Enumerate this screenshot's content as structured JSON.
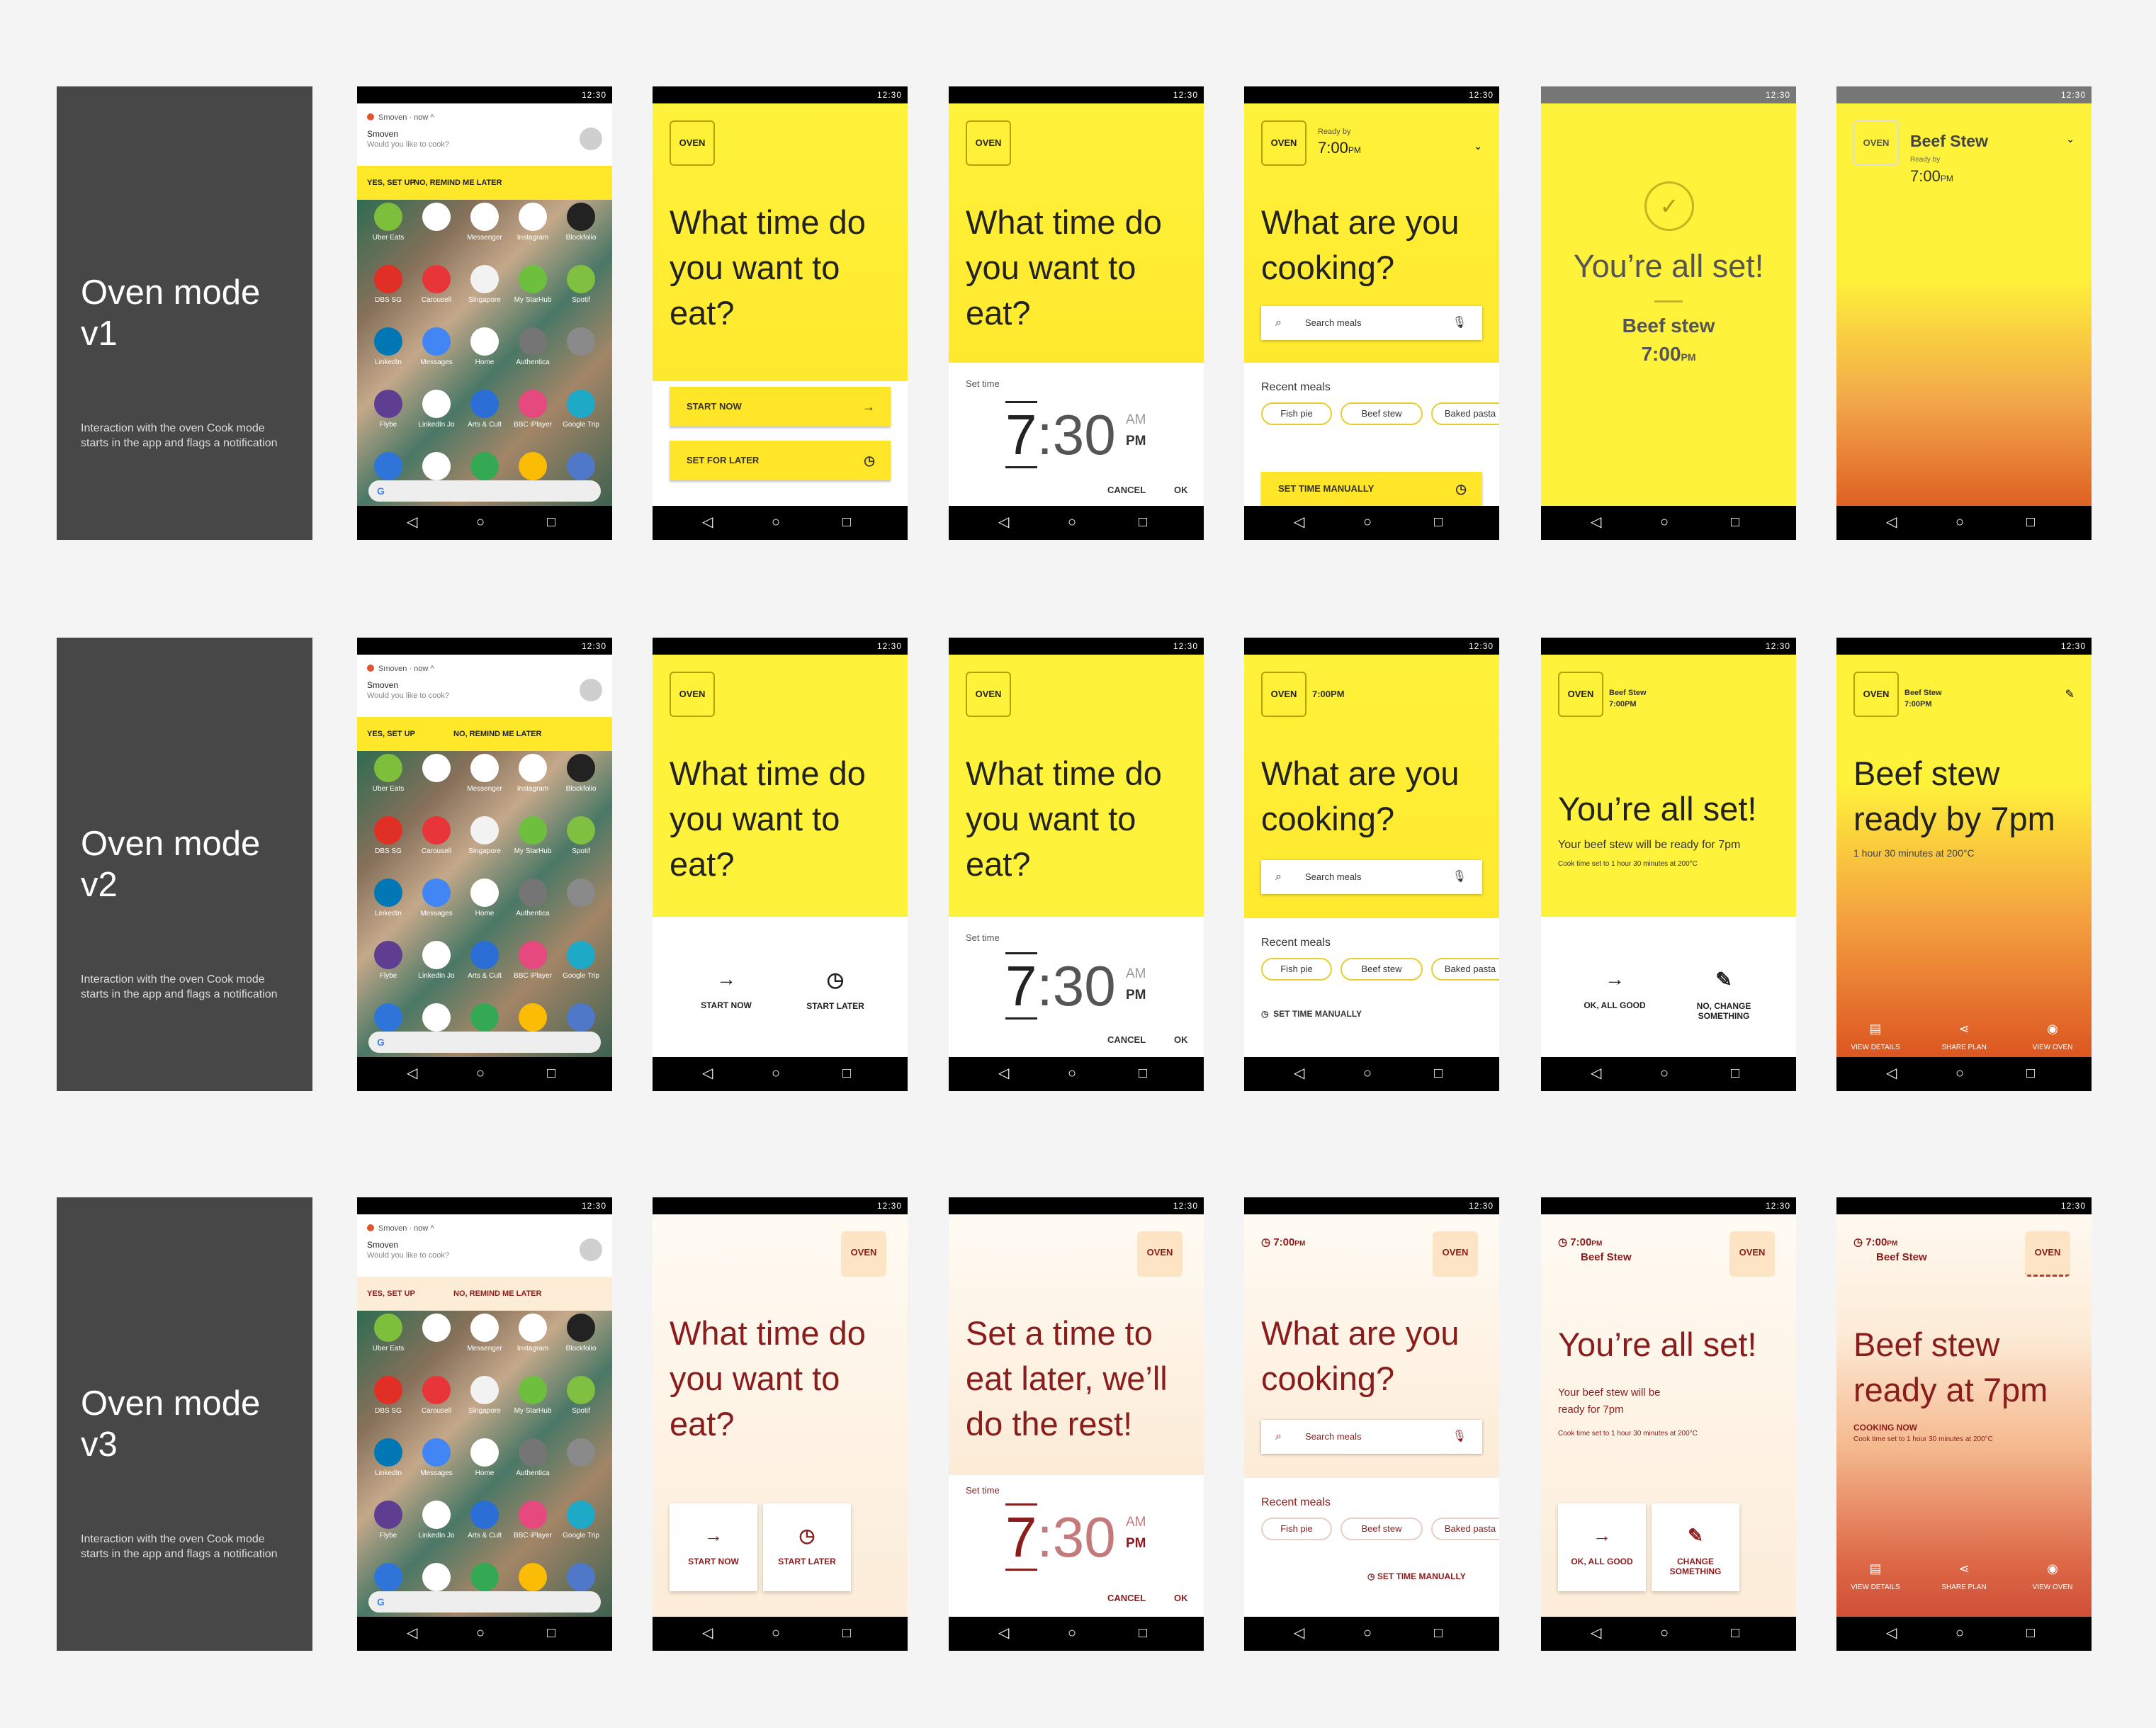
{
  "labels": [
    {
      "title": "Oven mode v1",
      "desc": "Interaction with the oven Cook mode starts in the app and flags a notification"
    },
    {
      "title": "Oven mode v2",
      "desc": "Interaction with the oven Cook mode starts in the app and flags a notification"
    },
    {
      "title": "Oven mode v3",
      "desc": "Interaction with the oven Cook mode starts in the app and flags a notification"
    }
  ],
  "status_time": "12:30",
  "nav": {
    "back": "◁",
    "home": "○",
    "recent": "□"
  },
  "notification": {
    "app": "Smoven",
    "meta": "· now ^",
    "title": "Smoven",
    "body": "Would you like to cook?",
    "yes": "YES, SET UP",
    "no": "NO, REMIND ME LATER"
  },
  "home_apps": [
    {
      "label": "Uber Eats",
      "color": "#7dbf3a"
    },
    {
      "label": "",
      "color": "#ffffff"
    },
    {
      "label": "Messenger",
      "color": "#ffffff"
    },
    {
      "label": "Instagram",
      "color": "#ffffff"
    },
    {
      "label": "Blockfolio",
      "color": "#222222"
    },
    {
      "label": "DBS SG",
      "color": "#e03025"
    },
    {
      "label": "Carousell",
      "color": "#e8353a"
    },
    {
      "label": "Singapore",
      "color": "#f2f2f2"
    },
    {
      "label": "My StarHub",
      "color": "#6fbf3f"
    },
    {
      "label": "Spotif",
      "color": "#80c040"
    },
    {
      "label": "LinkedIn",
      "color": "#0077b5"
    },
    {
      "label": "Messages",
      "color": "#4285f4"
    },
    {
      "label": "Home",
      "color": "#ffffff"
    },
    {
      "label": "Authentica",
      "color": "#757575"
    },
    {
      "label": "",
      "color": "#8a8a8a"
    },
    {
      "label": "Flybe",
      "color": "#5f3e91"
    },
    {
      "label": "LinkedIn Jo",
      "color": "#ffffff"
    },
    {
      "label": "Arts & Cult",
      "color": "#2b6fd6"
    },
    {
      "label": "BBC iPlayer",
      "color": "#e5497e"
    },
    {
      "label": "Google Trip",
      "color": "#1ea9c7"
    },
    {
      "label": "",
      "color": "#2f74d8"
    },
    {
      "label": "",
      "color": "#ffffff"
    },
    {
      "label": "",
      "color": "#34a853"
    },
    {
      "label": "",
      "color": "#fbbc05"
    },
    {
      "label": "",
      "color": "#4f79c8"
    }
  ],
  "v1": {
    "chip": "OVEN",
    "q_time": [
      "What time do",
      "you want to",
      "eat?"
    ],
    "start_now": "START NOW",
    "set_later": "SET FOR LATER",
    "picker": {
      "label": "Set time",
      "hour": "7",
      "rest": ":30",
      "am": "AM",
      "pm": "PM",
      "cancel": "CANCEL",
      "ok": "OK"
    },
    "ready_by": "Ready by",
    "ready_time": "7:00",
    "pm_suffix": "PM",
    "q_cook": [
      "What are you",
      "cooking?"
    ],
    "search_placeholder": "Search meals",
    "recent": "Recent meals",
    "meals": [
      "Fish pie",
      "Beef stew",
      "Baked pasta"
    ],
    "set_manual": "SET TIME MANUALLY",
    "all_set": "You’re all set!",
    "dish": "Beef stew",
    "dish_time": "7:00",
    "final_dish": "Beef Stew"
  },
  "v2": {
    "chip": "OVEN",
    "time_short": "7:00PM",
    "dish": "Beef Stew",
    "start_now": "START NOW",
    "start_later": "START LATER",
    "ok_good": "OK, ALL GOOD",
    "change": "NO, CHANGE",
    "something": "SOMETHING",
    "all_set": "You’re all set!",
    "ready_sub": "Your beef stew will be ready for 7pm",
    "cook_info": "Cook time set to 1 hour 30 minutes at 200°C",
    "final_title": [
      "Beef stew",
      "ready by 7pm"
    ],
    "final_sub": "1 hour 30 minutes at 200°C",
    "actions": [
      "VIEW DETAILS",
      "SHARE PLAN",
      "VIEW OVEN"
    ]
  },
  "v3": {
    "q_later": [
      "Set a time to",
      "eat later, we’ll",
      "do the rest!"
    ],
    "ready_sub": [
      "Your beef stew will be",
      "ready for 7pm"
    ],
    "change": "CHANGE",
    "cooking_now": "COOKING NOW",
    "final_title": [
      "Beef stew",
      "ready at 7pm"
    ]
  },
  "colors": {
    "yellow": "#fff23a",
    "red": "#8a1c1c",
    "cream": "#fdf1df"
  }
}
